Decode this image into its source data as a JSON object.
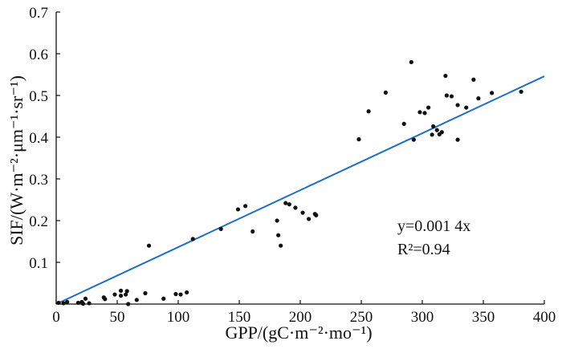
{
  "chart_data": {
    "type": "scatter",
    "xlabel": "GPP/(gC·m⁻²·mo⁻¹)",
    "ylabel": "SIF/(W·m⁻²·μm⁻¹·sr⁻¹)",
    "xlim": [
      0,
      400
    ],
    "ylim": [
      0,
      0.7
    ],
    "xticks": [
      "0",
      "50",
      "100",
      "150",
      "200",
      "250",
      "300",
      "350",
      "400"
    ],
    "yticks": [
      "0.1",
      "0.2",
      "0.3",
      "0.4",
      "0.5",
      "0.6",
      "0.7"
    ],
    "grid": false,
    "point_color": "#111111",
    "line_color": "#1f6fc4",
    "fit": {
      "slope": 0.0014,
      "equation": "y=0.001 4x",
      "r2_label": "R²=0.94"
    },
    "points": [
      [
        291,
        0.58
      ],
      [
        319,
        0.547
      ],
      [
        342,
        0.538
      ],
      [
        270,
        0.507
      ],
      [
        357,
        0.506
      ],
      [
        381,
        0.509
      ],
      [
        320,
        0.5
      ],
      [
        324,
        0.498
      ],
      [
        346,
        0.493
      ],
      [
        329,
        0.477
      ],
      [
        336,
        0.471
      ],
      [
        305,
        0.471
      ],
      [
        256,
        0.462
      ],
      [
        298,
        0.46
      ],
      [
        302,
        0.458
      ],
      [
        285,
        0.432
      ],
      [
        309,
        0.426
      ],
      [
        312,
        0.417
      ],
      [
        316,
        0.412
      ],
      [
        314,
        0.407
      ],
      [
        308,
        0.406
      ],
      [
        248,
        0.395
      ],
      [
        293,
        0.394
      ],
      [
        329,
        0.394
      ],
      [
        155,
        0.235
      ],
      [
        149,
        0.227
      ],
      [
        188,
        0.242
      ],
      [
        191,
        0.239
      ],
      [
        196,
        0.231
      ],
      [
        202,
        0.219
      ],
      [
        212,
        0.216
      ],
      [
        213,
        0.213
      ],
      [
        207,
        0.204
      ],
      [
        181,
        0.2
      ],
      [
        135,
        0.18
      ],
      [
        161,
        0.174
      ],
      [
        182,
        0.165
      ],
      [
        112,
        0.156
      ],
      [
        184,
        0.14
      ],
      [
        76,
        0.14
      ],
      [
        107,
        0.028
      ],
      [
        98,
        0.024
      ],
      [
        102,
        0.023
      ],
      [
        73,
        0.026
      ],
      [
        88,
        0.013
      ],
      [
        66,
        0.01
      ],
      [
        59,
        0.0
      ],
      [
        58,
        0.031
      ],
      [
        53,
        0.032
      ],
      [
        53,
        0.02
      ],
      [
        57,
        0.023
      ],
      [
        48,
        0.023
      ],
      [
        39,
        0.016
      ],
      [
        40,
        0.012
      ],
      [
        24,
        0.013
      ],
      [
        27,
        0.002
      ],
      [
        18,
        0.003
      ],
      [
        21,
        0.005
      ],
      [
        22,
        0.001
      ],
      [
        9,
        0.005
      ],
      [
        2,
        0.003
      ],
      [
        6,
        0.002
      ]
    ]
  }
}
